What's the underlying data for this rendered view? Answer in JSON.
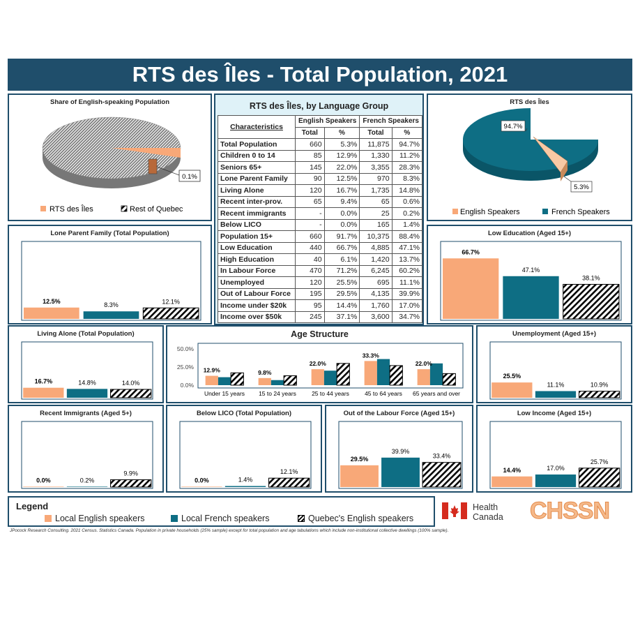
{
  "page": {
    "title": "RTS des Îles - Total Population, 2021",
    "footnote": "JPocock Research Consulting. 2021 Census. Statistics Canada. Population in private households (25% sample) except for total population and age tabulations which include non-institutional collective dwellings (100% sample)."
  },
  "colors": {
    "english": "#f8a878",
    "french": "#0e6e84",
    "quebec": "hatched",
    "frame": "#1f4e6b"
  },
  "table": {
    "title": "RTS des Îles, by Language Group",
    "group_english": "English Speakers",
    "group_french": "French Speakers",
    "col_characteristics": "Characteristics",
    "col_total": "Total",
    "col_pct": "%",
    "rows": [
      {
        "label": "Total Population",
        "eng_total": "660",
        "eng_pct": "5.3%",
        "fr_total": "11,875",
        "fr_pct": "94.7%"
      },
      {
        "label": "Children 0 to 14",
        "eng_total": "85",
        "eng_pct": "12.9%",
        "fr_total": "1,330",
        "fr_pct": "11.2%"
      },
      {
        "label": "Seniors 65+",
        "eng_total": "145",
        "eng_pct": "22.0%",
        "fr_total": "3,355",
        "fr_pct": "28.3%"
      },
      {
        "label": "Lone Parent Family",
        "eng_total": "90",
        "eng_pct": "12.5%",
        "fr_total": "970",
        "fr_pct": "8.3%"
      },
      {
        "label": "Living Alone",
        "eng_total": "120",
        "eng_pct": "16.7%",
        "fr_total": "1,735",
        "fr_pct": "14.8%"
      },
      {
        "label": "Recent inter-prov.",
        "eng_total": "65",
        "eng_pct": "9.4%",
        "fr_total": "65",
        "fr_pct": "0.6%"
      },
      {
        "label": "Recent immigrants",
        "eng_total": "-",
        "eng_pct": "0.0%",
        "fr_total": "25",
        "fr_pct": "0.2%"
      },
      {
        "label": "Below LICO",
        "eng_total": "-",
        "eng_pct": "0.0%",
        "fr_total": "165",
        "fr_pct": "1.4%"
      },
      {
        "label": "Population 15+",
        "eng_total": "660",
        "eng_pct": "91.7%",
        "fr_total": "10,375",
        "fr_pct": "88.4%"
      },
      {
        "label": "Low Education",
        "eng_total": "440",
        "eng_pct": "66.7%",
        "fr_total": "4,885",
        "fr_pct": "47.1%"
      },
      {
        "label": "High Education",
        "eng_total": "40",
        "eng_pct": "6.1%",
        "fr_total": "1,420",
        "fr_pct": "13.7%"
      },
      {
        "label": "In Labour Force",
        "eng_total": "470",
        "eng_pct": "71.2%",
        "fr_total": "6,245",
        "fr_pct": "60.2%"
      },
      {
        "label": "Unemployed",
        "eng_total": "120",
        "eng_pct": "25.5%",
        "fr_total": "695",
        "fr_pct": "11.1%"
      },
      {
        "label": "Out of Labour Force",
        "eng_total": "195",
        "eng_pct": "29.5%",
        "fr_total": "4,135",
        "fr_pct": "39.9%"
      },
      {
        "label": "Income under $20k",
        "eng_total": "95",
        "eng_pct": "14.4%",
        "fr_total": "1,760",
        "fr_pct": "17.0%"
      },
      {
        "label": "Income over $50k",
        "eng_total": "245",
        "eng_pct": "37.1%",
        "fr_total": "3,600",
        "fr_pct": "34.7%"
      }
    ]
  },
  "legend": {
    "title": "Legend",
    "english": "Local English speakers",
    "french": "Local French speakers",
    "quebec": "Quebec's English speakers"
  },
  "logos": {
    "hc_line1": "Health",
    "hc_line2": "Canada",
    "chssn": "CHSSN"
  },
  "chart_data": [
    {
      "id": "share",
      "type": "pie",
      "title": "Share of English-speaking Population",
      "labels": [
        "RTS des Îles",
        "Rest of Quebec"
      ],
      "values": [
        0.1,
        99.9
      ],
      "data_labels": [
        "0.1%"
      ]
    },
    {
      "id": "rts",
      "type": "pie",
      "title": "RTS des Îles",
      "labels": [
        "English Speakers",
        "French Speakers"
      ],
      "values": [
        5.3,
        94.7
      ],
      "data_labels": [
        "5.3%",
        "94.7%"
      ]
    },
    {
      "id": "lone",
      "type": "bar",
      "title": "Lone Parent Family (Total Population)",
      "ymax": 70,
      "values": [
        12.5,
        8.3,
        12.1
      ],
      "labels": [
        "12.5%",
        "8.3%",
        "12.1%"
      ]
    },
    {
      "id": "lowedu",
      "type": "bar",
      "title": "Low Education (Aged 15+)",
      "ymax": 70,
      "values": [
        66.7,
        47.1,
        38.1
      ],
      "labels": [
        "66.7%",
        "47.1%",
        "38.1%"
      ]
    },
    {
      "id": "living",
      "type": "bar",
      "title": "Living Alone (Total Population)",
      "ymax": 70,
      "values": [
        16.7,
        14.8,
        14.0
      ],
      "labels": [
        "16.7%",
        "14.8%",
        "14.0%"
      ]
    },
    {
      "id": "unemp",
      "type": "bar",
      "title": "Unemployment (Aged 15+)",
      "ymax": 70,
      "values": [
        25.5,
        11.1,
        10.9
      ],
      "labels": [
        "25.5%",
        "11.1%",
        "10.9%"
      ]
    },
    {
      "id": "immig",
      "type": "bar",
      "title": "Recent Immigrants (Aged 5+)",
      "ymax": 70,
      "values": [
        0.0,
        0.2,
        9.9
      ],
      "labels": [
        "0.0%",
        "0.2%",
        "9.9%"
      ]
    },
    {
      "id": "lico",
      "type": "bar",
      "title": "Below LICO (Total Population)",
      "ymax": 70,
      "values": [
        0.0,
        1.4,
        12.1
      ],
      "labels": [
        "0.0%",
        "1.4%",
        "12.1%"
      ]
    },
    {
      "id": "olf",
      "type": "bar",
      "title": "Out of the Labour Force (Aged 15+)",
      "ymax": 70,
      "values": [
        29.5,
        39.9,
        33.4
      ],
      "labels": [
        "29.5%",
        "39.9%",
        "33.4%"
      ]
    },
    {
      "id": "lowinc",
      "type": "bar",
      "title": "Low Income (Aged 15+)",
      "ymax": 70,
      "values": [
        14.4,
        17.0,
        25.7
      ],
      "labels": [
        "14.4%",
        "17.0%",
        "25.7%"
      ]
    },
    {
      "id": "age",
      "type": "bar",
      "title": "Age Structure",
      "ylim": [
        0,
        50
      ],
      "yticks": [
        "50.0%",
        "25.0%",
        "0.0%"
      ],
      "categories": [
        "Under 15 years",
        "15 to 24 years",
        "25 to 44 years",
        "45 to 64 years",
        "65 years and over"
      ],
      "series": [
        {
          "name": "Local English speakers",
          "values": [
            12.9,
            9.8,
            22.0,
            33.3,
            22.0
          ],
          "labels": [
            "12.9%",
            "9.8%",
            "22.0%",
            "33.3%",
            "22.0%"
          ]
        },
        {
          "name": "Local French speakers",
          "values": [
            11.0,
            7.0,
            20.0,
            36.0,
            30.0
          ]
        },
        {
          "name": "Quebec's English speakers",
          "values": [
            17.0,
            13.0,
            30.0,
            27.0,
            16.0
          ]
        }
      ]
    }
  ]
}
